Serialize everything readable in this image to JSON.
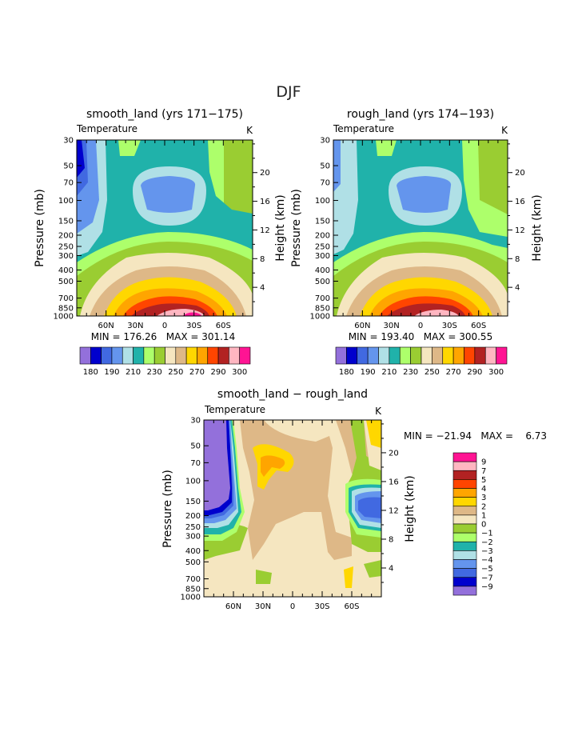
{
  "page_title": "DJF",
  "chart_data": [
    {
      "type": "contour",
      "title": "smooth_land (yrs 171−175)",
      "field": "Temperature",
      "units": "K",
      "ylabel": "Pressure (mb)",
      "y2label": "Height (km)",
      "min_max": "MIN = 176.26   MAX = 301.14",
      "min": 176.26,
      "max": 301.14,
      "x_ticks": [
        "60N",
        "30N",
        "0",
        "30S",
        "60S"
      ],
      "pressure_ticks": [
        "30",
        "50",
        "70",
        "100",
        "150",
        "200",
        "250",
        "300",
        "400",
        "500",
        "700",
        "850",
        "1000"
      ],
      "height_ticks": [
        "20",
        "16",
        "12",
        "8",
        "4"
      ],
      "colorbar": {
        "orientation": "horizontal",
        "colors": [
          "#9370DB",
          "#0000CD",
          "#4169E1",
          "#6495ED",
          "#B0E0E6",
          "#20B2AA",
          "#ADFF6B",
          "#9ACD32",
          "#F5E6C0",
          "#DEB887",
          "#FFD700",
          "#FFA500",
          "#FF4500",
          "#B22222",
          "#FFB6C1",
          "#FF1493"
        ],
        "labels": [
          "180",
          "190",
          "210",
          "230",
          "250",
          "270",
          "290",
          "300"
        ]
      }
    },
    {
      "type": "contour",
      "title": "rough_land (yrs 174−193)",
      "field": "Temperature",
      "units": "K",
      "ylabel": "Pressure (mb)",
      "y2label": "Height (km)",
      "min_max": "MIN = 193.40   MAX = 300.55",
      "min": 193.4,
      "max": 300.55,
      "x_ticks": [
        "60N",
        "30N",
        "0",
        "30S",
        "60S"
      ],
      "pressure_ticks": [
        "30",
        "50",
        "70",
        "100",
        "150",
        "200",
        "250",
        "300",
        "400",
        "500",
        "700",
        "850",
        "1000"
      ],
      "height_ticks": [
        "20",
        "16",
        "12",
        "8",
        "4"
      ],
      "colorbar": {
        "orientation": "horizontal",
        "colors": [
          "#9370DB",
          "#0000CD",
          "#4169E1",
          "#6495ED",
          "#B0E0E6",
          "#20B2AA",
          "#ADFF6B",
          "#9ACD32",
          "#F5E6C0",
          "#DEB887",
          "#FFD700",
          "#FFA500",
          "#FF4500",
          "#B22222",
          "#FFB6C1",
          "#FF1493"
        ],
        "labels": [
          "180",
          "190",
          "210",
          "230",
          "250",
          "270",
          "290",
          "300"
        ]
      }
    },
    {
      "type": "contour",
      "title": "smooth_land − rough_land",
      "field": "Temperature",
      "units": "K",
      "ylabel": "Pressure (mb)",
      "y2label": "Height (km)",
      "min_max": "MIN = −21.94   MAX =    6.73",
      "min": -21.94,
      "max": 6.73,
      "x_ticks": [
        "60N",
        "30N",
        "0",
        "30S",
        "60S"
      ],
      "pressure_ticks": [
        "30",
        "50",
        "70",
        "100",
        "150",
        "200",
        "250",
        "300",
        "400",
        "500",
        "700",
        "850",
        "1000"
      ],
      "height_ticks": [
        "20",
        "16",
        "12",
        "8",
        "4"
      ],
      "colorbar": {
        "orientation": "vertical",
        "colors": [
          "#FF1493",
          "#FFB6C1",
          "#B22222",
          "#FF4500",
          "#FFA500",
          "#FFD700",
          "#DEB887",
          "#F5E6C0",
          "#9ACD32",
          "#ADFF6B",
          "#20B2AA",
          "#B0E0E6",
          "#6495ED",
          "#4169E1",
          "#0000CD",
          "#9370DB"
        ],
        "labels": [
          "9",
          "7",
          "5",
          "4",
          "3",
          "2",
          "1",
          "0",
          "−1",
          "−2",
          "−3",
          "−4",
          "−5",
          "−7",
          "−9"
        ]
      }
    }
  ]
}
